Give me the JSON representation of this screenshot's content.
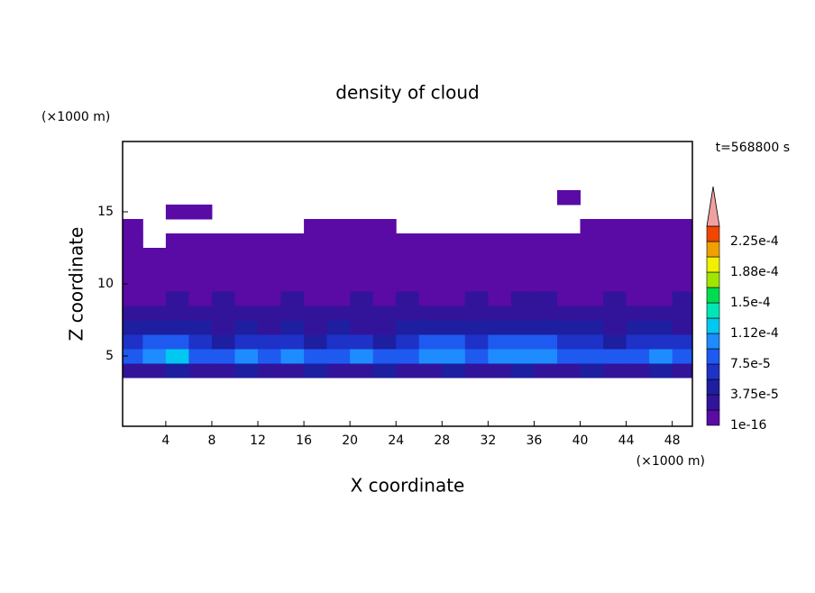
{
  "chart_data": {
    "type": "contour",
    "title": "density of cloud",
    "x_label": "X coordinate",
    "y_label": "Z coordinate",
    "x_unit": "(×1000 m)",
    "y_unit": "(×1000 m)",
    "annotation": "t=568800 s",
    "xlim": [
      0.25,
      49.75
    ],
    "ylim": [
      0.125,
      19.875
    ],
    "xticks": [
      4,
      8,
      12,
      16,
      20,
      24,
      28,
      32,
      36,
      40,
      44,
      48
    ],
    "yticks": [
      5,
      10,
      15
    ],
    "x": [
      1,
      3,
      5,
      7,
      9,
      11,
      13,
      15,
      17,
      19,
      21,
      23,
      25,
      27,
      29,
      31,
      33,
      35,
      37,
      39,
      41,
      43,
      45,
      47,
      49
    ],
    "y": [
      4,
      5,
      6,
      7,
      8,
      9,
      10,
      11,
      12,
      13,
      14,
      15,
      16
    ],
    "z": [
      [
        3e-05,
        3e-05,
        4e-05,
        3e-05,
        3e-05,
        4e-05,
        3e-05,
        3e-05,
        4e-05,
        3e-05,
        3e-05,
        4e-05,
        3e-05,
        3e-05,
        4e-05,
        3e-05,
        3e-05,
        4e-05,
        3e-05,
        3e-05,
        4e-05,
        3e-05,
        3e-05,
        4e-05,
        3e-05
      ],
      [
        9e-05,
        0.000105,
        0.000115,
        9e-05,
        8e-05,
        9.5e-05,
        8.5e-05,
        0.0001,
        9e-05,
        8e-05,
        9.5e-05,
        8.5e-05,
        9e-05,
        0.000105,
        0.00011,
        9e-05,
        0.000105,
        9.5e-05,
        0.000105,
        9e-05,
        8e-05,
        8.5e-05,
        9e-05,
        0.0001,
        9e-05
      ],
      [
        7e-05,
        8e-05,
        9e-05,
        6e-05,
        5e-05,
        6e-05,
        7e-05,
        6e-05,
        5e-05,
        6e-05,
        7e-05,
        5e-05,
        6e-05,
        8e-05,
        9e-05,
        7e-05,
        8e-05,
        8e-05,
        9e-05,
        7e-05,
        6e-05,
        5e-05,
        6e-05,
        7e-05,
        6e-05
      ],
      [
        4e-05,
        4e-05,
        5e-05,
        4e-05,
        3.5e-05,
        4e-05,
        3e-05,
        4e-05,
        3.5e-05,
        4e-05,
        3e-05,
        3.5e-05,
        4e-05,
        4e-05,
        5e-05,
        4e-05,
        4.5e-05,
        5e-05,
        5e-05,
        4e-05,
        4e-05,
        3.5e-05,
        4e-05,
        4e-05,
        3.5e-05
      ],
      [
        2.5e-05,
        2e-05,
        2.5e-05,
        2e-05,
        2e-05,
        2.5e-05,
        2e-05,
        2e-05,
        2.5e-05,
        2e-05,
        2e-05,
        2e-05,
        2.5e-05,
        2e-05,
        2.5e-05,
        2e-05,
        3e-05,
        3.5e-05,
        3e-05,
        2.5e-05,
        2e-05,
        2.5e-05,
        2e-05,
        2.5e-05,
        2e-05
      ],
      [
        1.5e-05,
        1.5e-05,
        2e-05,
        1.5e-05,
        2e-05,
        1.5e-05,
        1.5e-05,
        2e-05,
        1.5e-05,
        1.5e-05,
        2e-05,
        1.5e-05,
        2e-05,
        1.5e-05,
        1.5e-05,
        2e-05,
        1.5e-05,
        2e-05,
        2e-05,
        1.5e-05,
        1.5e-05,
        2e-05,
        1.5e-05,
        1.5e-05,
        2e-05
      ],
      [
        1e-05,
        1e-05,
        1.5e-05,
        1e-05,
        1e-05,
        1e-05,
        1.5e-05,
        1e-05,
        1e-05,
        1.5e-05,
        1e-05,
        1e-05,
        1e-05,
        1.5e-05,
        1e-05,
        1e-05,
        1e-05,
        1.5e-05,
        1e-05,
        1e-05,
        1.5e-05,
        1e-05,
        1e-05,
        1e-05,
        1e-05
      ],
      [
        5e-06,
        5e-06,
        5e-06,
        5e-06,
        5e-06,
        5e-06,
        5e-06,
        5e-06,
        5e-06,
        5e-06,
        5e-06,
        5e-06,
        5e-06,
        5e-06,
        5e-06,
        5e-06,
        5e-06,
        5e-06,
        5e-06,
        5e-06,
        5e-06,
        5e-06,
        5e-06,
        5e-06,
        5e-06
      ],
      [
        3e-06,
        3e-06,
        3e-06,
        3e-06,
        3e-06,
        3e-06,
        3e-06,
        3e-06,
        3e-06,
        3e-06,
        3e-06,
        3e-06,
        3e-06,
        3e-06,
        3e-06,
        3e-06,
        3e-06,
        3e-06,
        3e-06,
        3e-06,
        3e-06,
        3e-06,
        3e-06,
        3e-06,
        3e-06
      ],
      [
        2e-06,
        null,
        2e-06,
        2e-06,
        2e-06,
        2e-06,
        2e-06,
        2e-06,
        2e-06,
        2e-06,
        2e-06,
        2e-06,
        2e-06,
        2e-06,
        2e-06,
        2e-06,
        2e-06,
        2e-06,
        2e-06,
        2e-06,
        2e-06,
        2e-06,
        2e-06,
        2e-06,
        2e-06
      ],
      [
        1e-06,
        null,
        null,
        null,
        null,
        null,
        null,
        null,
        1e-06,
        1e-06,
        1e-06,
        1e-06,
        null,
        null,
        null,
        null,
        null,
        null,
        null,
        null,
        1e-06,
        1e-06,
        1e-06,
        1e-06,
        1e-06
      ],
      [
        null,
        null,
        1e-06,
        1e-06,
        null,
        null,
        null,
        null,
        null,
        null,
        null,
        null,
        null,
        null,
        null,
        null,
        null,
        null,
        null,
        null,
        null,
        null,
        null,
        null,
        null
      ],
      [
        null,
        null,
        null,
        null,
        null,
        null,
        null,
        null,
        null,
        null,
        null,
        null,
        null,
        null,
        null,
        null,
        null,
        null,
        null,
        1e-06,
        null,
        null,
        null,
        null,
        null
      ]
    ],
    "levels": [
      {
        "value": 1e-16,
        "label": "1e-16"
      },
      1.875e-05,
      {
        "value": 3.75e-05,
        "label": "3.75e-5"
      },
      5.625e-05,
      {
        "value": 7.5e-05,
        "label": "7.5e-5"
      },
      9.375e-05,
      {
        "value": 0.0001125,
        "label": "1.12e-4"
      },
      0.00013125,
      {
        "value": 0.00015,
        "label": "1.5e-4"
      },
      0.00016875,
      {
        "value": 0.0001875,
        "label": "1.88e-4"
      },
      0.00020625,
      {
        "value": 0.000225,
        "label": "2.25e-4"
      },
      0.00024375
    ],
    "colors": [
      "#5a0aa5",
      "#32149b",
      "#1e1ea0",
      "#1e32c8",
      "#1e5af0",
      "#1e8cff",
      "#00c8f0",
      "#00e6b4",
      "#00dc50",
      "#a0e600",
      "#f0f000",
      "#f0a000",
      "#f04600"
    ],
    "extend_color": "#f0a0a0"
  }
}
